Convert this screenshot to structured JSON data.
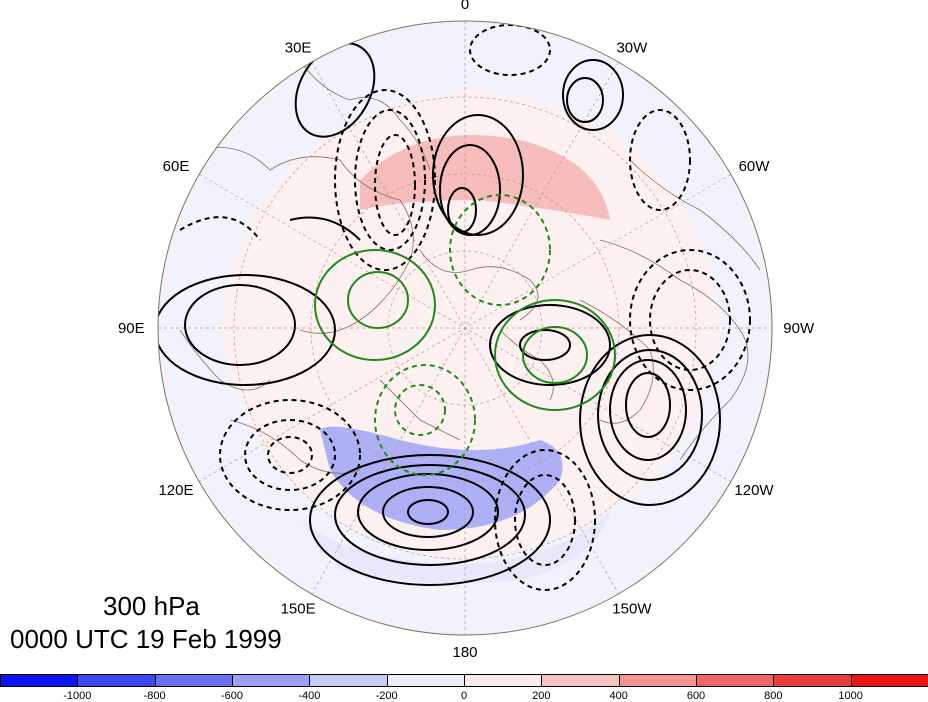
{
  "caption": {
    "level": "300 hPa",
    "time": "0000 UTC 19 Feb 1999"
  },
  "longitude_labels": [
    {
      "text": "0",
      "angle": 0
    },
    {
      "text": "30W",
      "angle": 30
    },
    {
      "text": "60W",
      "angle": 60
    },
    {
      "text": "90W",
      "angle": 90
    },
    {
      "text": "120W",
      "angle": 120
    },
    {
      "text": "150W",
      "angle": 150
    },
    {
      "text": "180",
      "angle": 180
    },
    {
      "text": "150E",
      "angle": 210
    },
    {
      "text": "120E",
      "angle": 240
    },
    {
      "text": "90E",
      "angle": 270
    },
    {
      "text": "60E",
      "angle": 300
    },
    {
      "text": "30E",
      "angle": 330
    }
  ],
  "colorbar": {
    "colors": [
      "#0a14f0",
      "#3c46f2",
      "#6a70f2",
      "#9ca0f4",
      "#c8caf8",
      "#eceefc",
      "#fdecec",
      "#f9c2c2",
      "#f59494",
      "#f06666",
      "#ec3c3c",
      "#ec1414"
    ],
    "tick_labels": [
      "-1000",
      "-800",
      "-600",
      "-400",
      "-200",
      "0",
      "200",
      "400",
      "600",
      "800",
      "1000"
    ]
  },
  "colors": {
    "land_outline": "#8b6f5c",
    "graticule": "#b89a80",
    "solid_contour": "#000000",
    "green_contour": "#1e8a1e"
  }
}
